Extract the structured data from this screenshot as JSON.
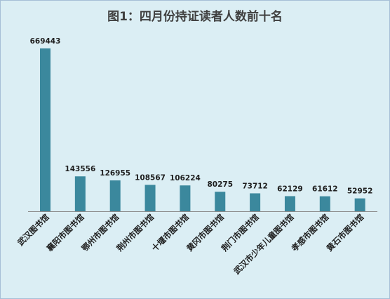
{
  "chart_data": {
    "type": "bar",
    "title": "图1：四月份持证读者人数前十名",
    "categories": [
      "武汉图书馆",
      "襄阳市图书馆",
      "鄂州市图书馆",
      "荆州市图书馆",
      "十堰市图书馆",
      "黄冈市图书馆",
      "荆门市图书馆",
      "武汉市少年儿童图书馆",
      "孝感市图书馆",
      "黄石市图书馆"
    ],
    "values": [
      669443,
      143556,
      126955,
      108567,
      106224,
      80275,
      73712,
      62129,
      61612,
      52952
    ],
    "xlabel": "",
    "ylabel": "",
    "ylim": [
      0,
      669443
    ],
    "grid": false,
    "legend": "none",
    "bar_color": "#3b889d",
    "background_color": "#dbeef4"
  }
}
